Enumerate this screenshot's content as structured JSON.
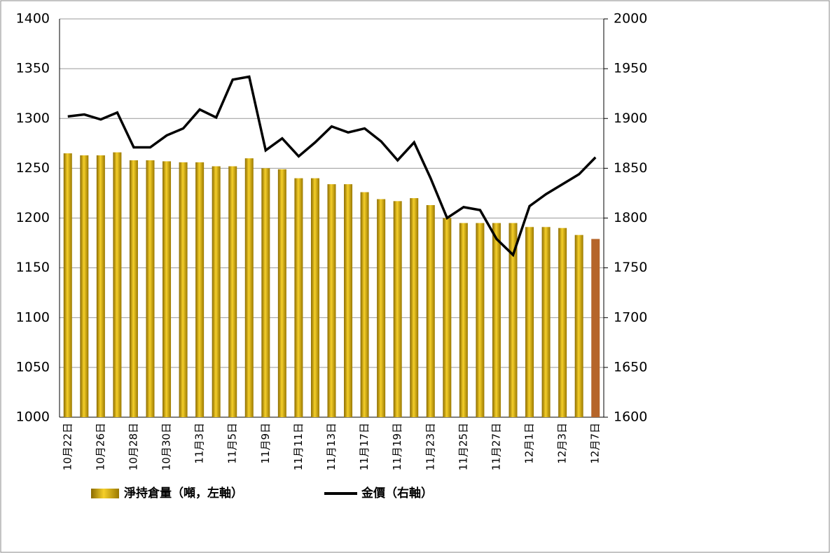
{
  "chart_data": {
    "type": "bar-line",
    "categories": [
      "10月22日",
      null,
      "10月26日",
      null,
      "10月28日",
      null,
      "10月30日",
      null,
      "11月3日",
      null,
      "11月5日",
      null,
      "11月9日",
      null,
      "11月11日",
      null,
      "11月13日",
      null,
      "11月17日",
      null,
      "11月19日",
      null,
      "11月23日",
      null,
      "11月25日",
      null,
      "11月27日",
      null,
      "12月1日",
      null,
      "12月3日",
      null,
      "12月7日"
    ],
    "series": [
      {
        "name": "淨持倉量（噸，左軸）",
        "type": "bar",
        "color": "#c9a000",
        "highlight_color": "#b5652a",
        "values": [
          1265,
          1263,
          1263,
          1266,
          1258,
          1258,
          1257,
          1256,
          1256,
          1252,
          1252,
          1260,
          1250,
          1249,
          1240,
          1240,
          1234,
          1234,
          1226,
          1219,
          1217,
          1220,
          1213,
          1200,
          1195,
          1195,
          1195,
          1195,
          1191,
          1191,
          1190,
          1183,
          1179
        ]
      },
      {
        "name": "金價（右軸）",
        "type": "line",
        "axis": "y2",
        "color": "#000000",
        "values": [
          1902,
          1904,
          1899,
          1906,
          1871,
          1871,
          1883,
          1890,
          1909,
          1901,
          1939,
          1942,
          1868,
          1880,
          1862,
          1876,
          1892,
          1886,
          1890,
          1877,
          1858,
          1876,
          1840,
          1800,
          1811,
          1808,
          1779,
          1763,
          1812,
          1824,
          1834,
          1844,
          1861
        ]
      }
    ],
    "ylim": [
      1000,
      1400
    ],
    "yticks": [
      1000,
      1050,
      1100,
      1150,
      1200,
      1250,
      1300,
      1350,
      1400
    ],
    "y2lim": [
      1600,
      2000
    ],
    "y2ticks": [
      1600,
      1650,
      1700,
      1750,
      1800,
      1850,
      1900,
      1950,
      2000
    ],
    "grid": true
  }
}
